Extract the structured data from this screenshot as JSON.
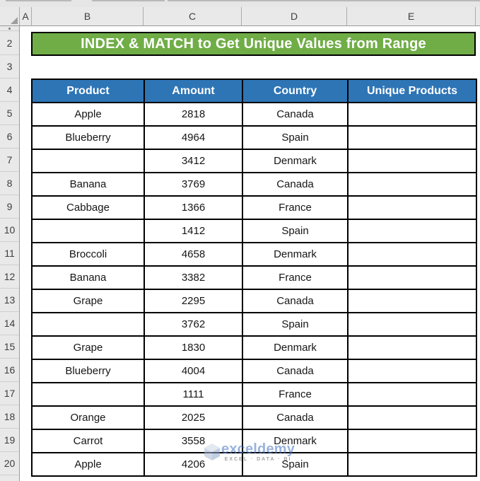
{
  "banner": {
    "text": "INDEX & MATCH to Get Unique Values from Range"
  },
  "column_headers": [
    "A",
    "B",
    "C",
    "D",
    "E"
  ],
  "row_numbers": [
    "2",
    "3",
    "4",
    "5",
    "6",
    "7",
    "8",
    "9",
    "10",
    "11",
    "12",
    "13",
    "14",
    "15",
    "16",
    "17",
    "18",
    "19",
    "20"
  ],
  "table": {
    "headers": [
      "Product",
      "Amount",
      "Country",
      "Unique Products"
    ],
    "rows": [
      [
        "Apple",
        "2818",
        "Canada",
        ""
      ],
      [
        "Blueberry",
        "4964",
        "Spain",
        ""
      ],
      [
        "",
        "3412",
        "Denmark",
        ""
      ],
      [
        "Banana",
        "3769",
        "Canada",
        ""
      ],
      [
        "Cabbage",
        "1366",
        "France",
        ""
      ],
      [
        "",
        "1412",
        "Spain",
        ""
      ],
      [
        "Broccoli",
        "4658",
        "Denmark",
        ""
      ],
      [
        "Banana",
        "3382",
        "France",
        ""
      ],
      [
        "Grape",
        "2295",
        "Canada",
        ""
      ],
      [
        "",
        "3762",
        "Spain",
        ""
      ],
      [
        "Grape",
        "1830",
        "Denmark",
        ""
      ],
      [
        "Blueberry",
        "4004",
        "Canada",
        ""
      ],
      [
        "",
        "1111",
        "France",
        ""
      ],
      [
        "Orange",
        "2025",
        "Canada",
        ""
      ],
      [
        "Carrot",
        "3558",
        "Denmark",
        ""
      ],
      [
        "Apple",
        "4206",
        "Spain",
        ""
      ]
    ]
  },
  "watermark": {
    "brand": "exceldemy",
    "tagline": "EXCEL · DATA · BI"
  },
  "colors": {
    "banner_green": "#70AD47",
    "header_blue": "#2E75B6",
    "cell_border": "#000000",
    "grid_header_bg": "#E9E9E9",
    "watermark_blue": "#4472C4"
  }
}
